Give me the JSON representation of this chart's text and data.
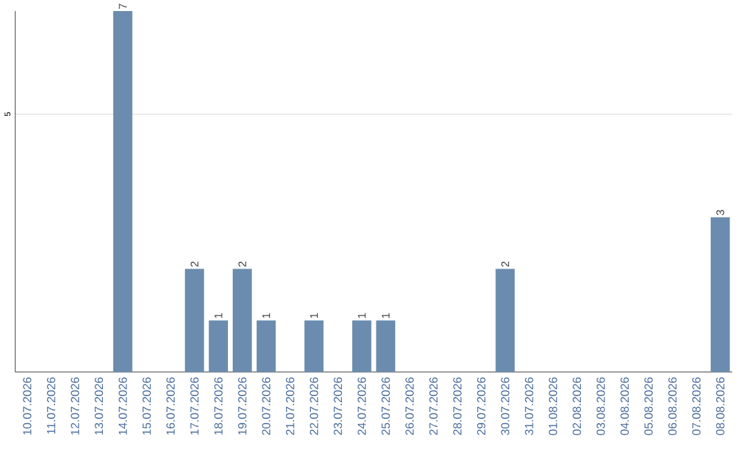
{
  "chart_data": {
    "type": "bar",
    "categories": [
      "10.07.2026",
      "11.07.2026",
      "12.07.2026",
      "13.07.2026",
      "14.07.2026",
      "15.07.2026",
      "16.07.2026",
      "17.07.2026",
      "18.07.2026",
      "19.07.2026",
      "20.07.2026",
      "21.07.2026",
      "22.07.2026",
      "23.07.2026",
      "24.07.2026",
      "25.07.2026",
      "26.07.2026",
      "27.07.2026",
      "28.07.2026",
      "29.07.2026",
      "30.07.2026",
      "31.07.2026",
      "01.08.2026",
      "02.08.2026",
      "03.08.2026",
      "04.08.2026",
      "05.08.2026",
      "06.08.2026",
      "07.08.2026",
      "08.08.2026"
    ],
    "values": [
      null,
      null,
      null,
      null,
      7,
      null,
      null,
      2,
      1,
      2,
      1,
      null,
      1,
      null,
      1,
      1,
      null,
      null,
      null,
      null,
      2,
      null,
      null,
      null,
      null,
      null,
      null,
      null,
      null,
      3
    ],
    "color": "#6b8cae",
    "ylim": [
      0,
      7
    ],
    "yticks": [
      5
    ],
    "grid": "y",
    "data_labels": true
  }
}
